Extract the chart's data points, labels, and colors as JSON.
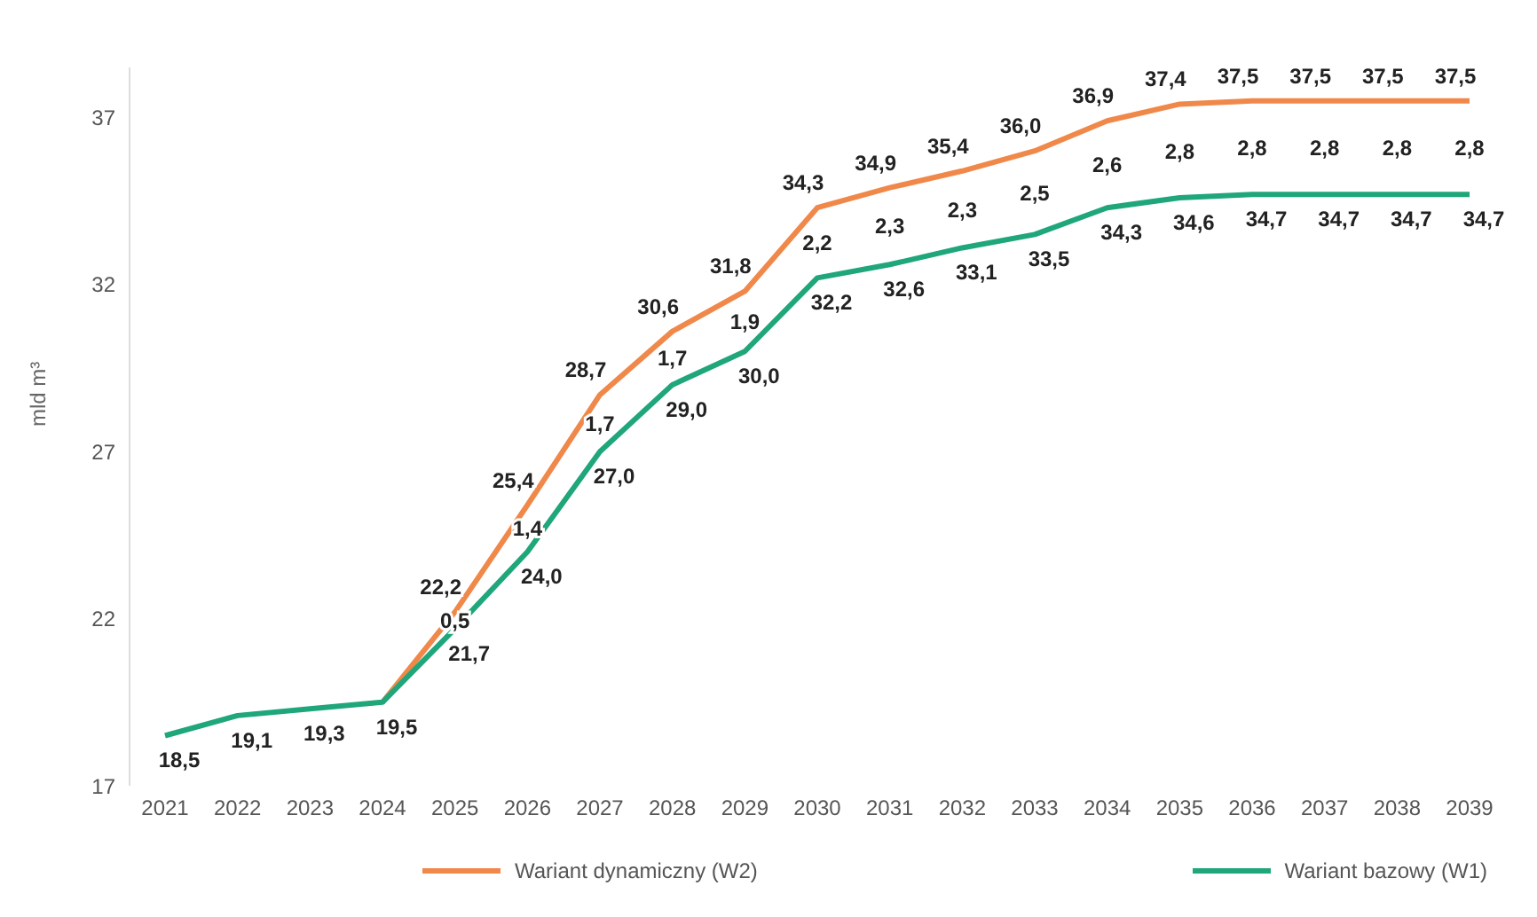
{
  "chart_data": {
    "type": "line",
    "ylabel": "mld m³",
    "categories": [
      "2021",
      "2022",
      "2023",
      "2024",
      "2025",
      "2026",
      "2027",
      "2028",
      "2029",
      "2030",
      "2031",
      "2032",
      "2033",
      "2034",
      "2035",
      "2036",
      "2037",
      "2038",
      "2039"
    ],
    "ylim": [
      17,
      38.5
    ],
    "yticks": [
      17,
      22,
      27,
      32,
      37
    ],
    "legend": "bottom",
    "grid": false,
    "series": [
      {
        "name": "Wariant dynamiczny (W2)",
        "color": "#f0884a",
        "values": [
          null,
          null,
          null,
          19.5,
          22.2,
          25.4,
          28.7,
          30.6,
          31.8,
          34.3,
          34.9,
          35.4,
          36.0,
          36.9,
          37.4,
          37.5,
          37.5,
          37.5,
          37.5
        ],
        "value_labels": [
          null,
          null,
          null,
          null,
          "22,2",
          "25,4",
          "28,7",
          "30,6",
          "31,8",
          "34,3",
          "34,9",
          "35,4",
          "36,0",
          "36,9",
          "37,4",
          "37,5",
          "37,5",
          "37,5",
          "37,5"
        ]
      },
      {
        "name": "Wariant bazowy (W1)",
        "color": "#1fa67a",
        "values": [
          18.5,
          19.1,
          19.3,
          19.5,
          21.7,
          24.0,
          27.0,
          29.0,
          30.0,
          32.2,
          32.6,
          33.1,
          33.5,
          34.3,
          34.6,
          34.7,
          34.7,
          34.7,
          34.7
        ],
        "value_labels": [
          "18,5",
          "19,1",
          "19,3",
          "19,5",
          "21,7",
          "24,0",
          "27,0",
          "29,0",
          "30,0",
          "32,2",
          "32,6",
          "33,1",
          "33,5",
          "34,3",
          "34,6",
          "34,7",
          "34,7",
          "34,7",
          "34,7"
        ]
      }
    ],
    "annotations": [
      "0,5",
      "1,4",
      "1,7",
      "1,7",
      "1,9",
      "2,2",
      "2,3",
      "2,3",
      "2,5",
      "2,6",
      "2,8",
      "2,8",
      "2,8",
      "2,8",
      "2,8"
    ]
  }
}
